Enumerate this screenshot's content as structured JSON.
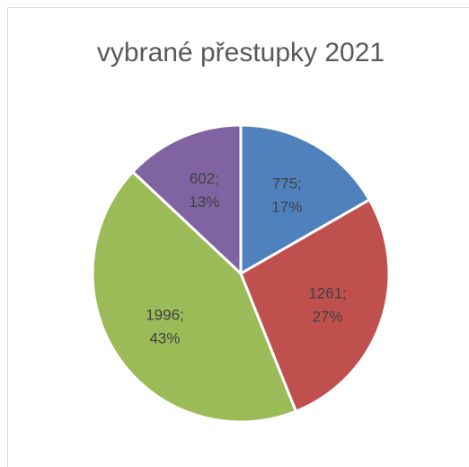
{
  "chart_data": {
    "type": "pie",
    "title": "vybrané přestupky 2021",
    "values": [
      775,
      1261,
      1996,
      602
    ],
    "value_labels": [
      [
        "775;",
        "17%"
      ],
      [
        "1261;",
        "27%"
      ],
      [
        "1996;",
        "43%"
      ],
      [
        "602;",
        "13%"
      ]
    ],
    "colors": [
      "#4f81bd",
      "#c0504d",
      "#9bbb59",
      "#8064a2"
    ]
  }
}
